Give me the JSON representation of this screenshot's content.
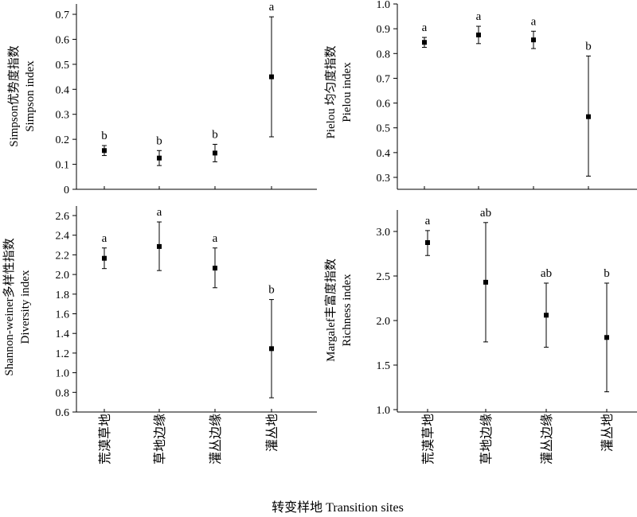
{
  "xaxis_title": "转变样地 Transition sites",
  "chart_data": [
    {
      "type": "scatter",
      "ylabel": [
        "Simpson优势度指数",
        "Simpson index"
      ],
      "ylim": [
        0,
        0.75
      ],
      "yticks": [
        "0",
        "0.1",
        "0.2",
        "0.3",
        "0.4",
        "0.5",
        "0.6",
        "0.7"
      ],
      "categories": [
        "荒漠草地",
        "草地边缘",
        "灌丛边缘",
        "灌丛地"
      ],
      "series": [
        {
          "values": [
            0.155,
            0.125,
            0.145,
            0.45
          ],
          "lower": [
            0.135,
            0.095,
            0.11,
            0.21
          ],
          "upper": [
            0.175,
            0.155,
            0.18,
            0.69
          ],
          "labels": [
            "b",
            "b",
            "b",
            "a"
          ]
        }
      ]
    },
    {
      "type": "scatter",
      "ylabel": [
        "Pielou 均匀度指数",
        "Pielou index"
      ],
      "ylim": [
        0.2,
        1.0
      ],
      "yticks": [
        "0.3",
        "0.4",
        "0.5",
        "0.6",
        "0.7",
        "0.8",
        "0.9",
        "1.0"
      ],
      "categories": [
        "荒漠草地",
        "草地边缘",
        "灌丛边缘",
        "灌丛地"
      ],
      "series": [
        {
          "values": [
            0.845,
            0.875,
            0.855,
            0.545
          ],
          "lower": [
            0.825,
            0.84,
            0.82,
            0.305
          ],
          "upper": [
            0.865,
            0.91,
            0.89,
            0.79
          ],
          "labels": [
            "a",
            "a",
            "a",
            "b"
          ]
        }
      ]
    },
    {
      "type": "scatter",
      "ylabel": [
        "Shannon-weiner多样性指数",
        "Diversity index"
      ],
      "ylim": [
        0.6,
        2.7
      ],
      "yticks": [
        "0.6",
        "0.8",
        "1.0",
        "1.2",
        "1.4",
        "1.6",
        "1.8",
        "2.0",
        "2.2",
        "2.4",
        "2.6"
      ],
      "categories": [
        "荒漠草地",
        "草地边缘",
        "灌丛边缘",
        "灌丛地"
      ],
      "series": [
        {
          "values": [
            2.165,
            2.285,
            2.065,
            1.245
          ],
          "lower": [
            2.06,
            2.04,
            1.865,
            0.745
          ],
          "upper": [
            2.27,
            2.535,
            2.27,
            1.745
          ],
          "labels": [
            "a",
            "a",
            "a",
            "b"
          ]
        }
      ]
    },
    {
      "type": "scatter",
      "ylabel": [
        "Margalef丰富度指数",
        "Richness index"
      ],
      "ylim": [
        1.0,
        3.2
      ],
      "yticks": [
        "1.0",
        "1.5",
        "2.0",
        "2.5",
        "3.0"
      ],
      "categories": [
        "荒漠草地",
        "草地边缘",
        "灌丛边缘",
        "灌丛地"
      ],
      "series": [
        {
          "values": [
            2.875,
            2.43,
            2.06,
            1.81
          ],
          "lower": [
            2.73,
            1.76,
            1.7,
            1.2
          ],
          "upper": [
            3.01,
            3.1,
            2.42,
            2.42
          ],
          "labels": [
            "a",
            "ab",
            "ab",
            "b"
          ]
        }
      ]
    }
  ]
}
